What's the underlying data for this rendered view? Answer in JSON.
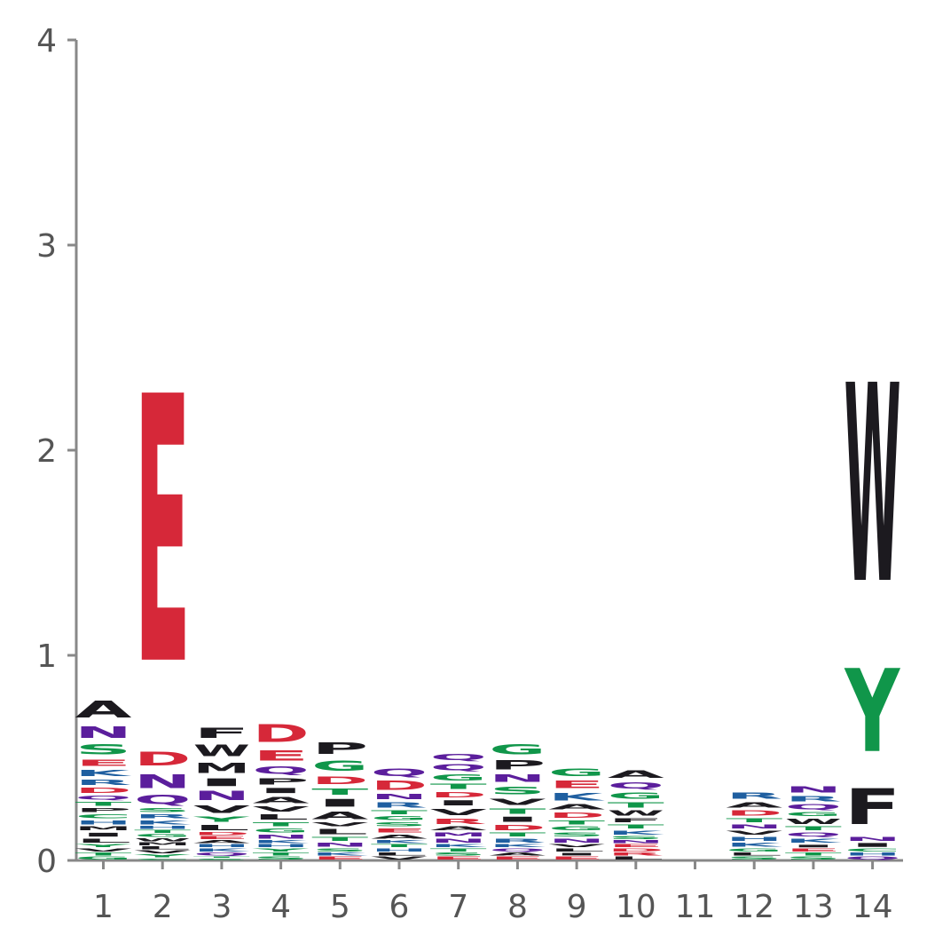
{
  "chart_data": {
    "type": "sequence-logo",
    "ylim": [
      0,
      4
    ],
    "yticks": [
      0,
      1,
      2,
      3,
      4
    ],
    "positions": [
      "1",
      "2",
      "3",
      "4",
      "5",
      "6",
      "7",
      "8",
      "9",
      "10",
      "11",
      "12",
      "13",
      "14"
    ],
    "colors": {
      "red": "#d62839",
      "purple": "#5b1e9c",
      "green": "#10964a",
      "blue": "#1f5fa0",
      "black": "#1c1a1f"
    },
    "columns": [
      {
        "position": "1",
        "letters": [
          {
            "l": "G",
            "h": 0.02,
            "c": "green"
          },
          {
            "l": "T",
            "h": 0.02,
            "c": "green"
          },
          {
            "l": "V",
            "h": 0.02,
            "c": "black"
          },
          {
            "l": "Y",
            "h": 0.02,
            "c": "green"
          },
          {
            "l": "L",
            "h": 0.03,
            "c": "black"
          },
          {
            "l": "I",
            "h": 0.03,
            "c": "black"
          },
          {
            "l": "M",
            "h": 0.03,
            "c": "black"
          },
          {
            "l": "H",
            "h": 0.03,
            "c": "blue"
          },
          {
            "l": "C",
            "h": 0.03,
            "c": "green"
          },
          {
            "l": "P",
            "h": 0.03,
            "c": "black"
          },
          {
            "l": "T",
            "h": 0.03,
            "c": "green"
          },
          {
            "l": "Q",
            "h": 0.03,
            "c": "purple"
          },
          {
            "l": "D",
            "h": 0.04,
            "c": "red"
          },
          {
            "l": "R",
            "h": 0.04,
            "c": "blue"
          },
          {
            "l": "K",
            "h": 0.05,
            "c": "blue"
          },
          {
            "l": "E",
            "h": 0.05,
            "c": "red"
          },
          {
            "l": "S",
            "h": 0.08,
            "c": "green"
          },
          {
            "l": "N",
            "h": 0.09,
            "c": "purple"
          },
          {
            "l": "A",
            "h": 0.13,
            "c": "black"
          }
        ]
      },
      {
        "position": "2",
        "letters": [
          {
            "l": "C",
            "h": 0.01,
            "c": "green"
          },
          {
            "l": "Y",
            "h": 0.02,
            "c": "green"
          },
          {
            "l": "V",
            "h": 0.02,
            "c": "black"
          },
          {
            "l": "L",
            "h": 0.02,
            "c": "black"
          },
          {
            "l": "M",
            "h": 0.02,
            "c": "black"
          },
          {
            "l": "W",
            "h": 0.02,
            "c": "black"
          },
          {
            "l": "G",
            "h": 0.02,
            "c": "green"
          },
          {
            "l": "T",
            "h": 0.02,
            "c": "green"
          },
          {
            "l": "H",
            "h": 0.02,
            "c": "blue"
          },
          {
            "l": "K",
            "h": 0.03,
            "c": "blue"
          },
          {
            "l": "R",
            "h": 0.03,
            "c": "blue"
          },
          {
            "l": "S",
            "h": 0.03,
            "c": "green"
          },
          {
            "l": "Q",
            "h": 0.07,
            "c": "purple"
          },
          {
            "l": "N",
            "h": 0.11,
            "c": "purple"
          },
          {
            "l": "D",
            "h": 0.11,
            "c": "red"
          },
          {
            "l": "E",
            "h": 2.09,
            "c": "red"
          }
        ]
      },
      {
        "position": "3",
        "letters": [
          {
            "l": "S",
            "h": 0.01,
            "c": "green"
          },
          {
            "l": "T",
            "h": 0.01,
            "c": "green"
          },
          {
            "l": "Q",
            "h": 0.02,
            "c": "purple"
          },
          {
            "l": "K",
            "h": 0.02,
            "c": "blue"
          },
          {
            "l": "H",
            "h": 0.02,
            "c": "blue"
          },
          {
            "l": "A",
            "h": 0.02,
            "c": "black"
          },
          {
            "l": "E",
            "h": 0.02,
            "c": "red"
          },
          {
            "l": "D",
            "h": 0.02,
            "c": "red"
          },
          {
            "l": "L",
            "h": 0.04,
            "c": "black"
          },
          {
            "l": "Y",
            "h": 0.04,
            "c": "green"
          },
          {
            "l": "V",
            "h": 0.06,
            "c": "black"
          },
          {
            "l": "N",
            "h": 0.07,
            "c": "purple"
          },
          {
            "l": "I",
            "h": 0.06,
            "c": "black"
          },
          {
            "l": "M",
            "h": 0.08,
            "c": "black"
          },
          {
            "l": "W",
            "h": 0.09,
            "c": "black"
          },
          {
            "l": "F",
            "h": 0.08,
            "c": "black"
          }
        ]
      },
      {
        "position": "4",
        "letters": [
          {
            "l": "S",
            "h": 0.02,
            "c": "green"
          },
          {
            "l": "T",
            "h": 0.02,
            "c": "green"
          },
          {
            "l": "Y",
            "h": 0.02,
            "c": "green"
          },
          {
            "l": "H",
            "h": 0.02,
            "c": "blue"
          },
          {
            "l": "K",
            "h": 0.02,
            "c": "blue"
          },
          {
            "l": "N",
            "h": 0.03,
            "c": "purple"
          },
          {
            "l": "G",
            "h": 0.03,
            "c": "green"
          },
          {
            "l": "T",
            "h": 0.03,
            "c": "green"
          },
          {
            "l": "L",
            "h": 0.04,
            "c": "black"
          },
          {
            "l": "V",
            "h": 0.04,
            "c": "black"
          },
          {
            "l": "A",
            "h": 0.05,
            "c": "black"
          },
          {
            "l": "I",
            "h": 0.04,
            "c": "black"
          },
          {
            "l": "P",
            "h": 0.05,
            "c": "black"
          },
          {
            "l": "Q",
            "h": 0.06,
            "c": "purple"
          },
          {
            "l": "E",
            "h": 0.08,
            "c": "red"
          },
          {
            "l": "D",
            "h": 0.14,
            "c": "red"
          }
        ]
      },
      {
        "position": "5",
        "letters": [
          {
            "l": "E",
            "h": 0.02,
            "c": "red"
          },
          {
            "l": "K",
            "h": 0.02,
            "c": "blue"
          },
          {
            "l": "S",
            "h": 0.02,
            "c": "green"
          },
          {
            "l": "N",
            "h": 0.03,
            "c": "purple"
          },
          {
            "l": "T",
            "h": 0.03,
            "c": "green"
          },
          {
            "l": "L",
            "h": 0.04,
            "c": "black"
          },
          {
            "l": "V",
            "h": 0.03,
            "c": "black"
          },
          {
            "l": "A",
            "h": 0.06,
            "c": "black"
          },
          {
            "l": "I",
            "h": 0.06,
            "c": "black"
          },
          {
            "l": "T",
            "h": 0.05,
            "c": "green"
          },
          {
            "l": "D",
            "h": 0.06,
            "c": "red"
          },
          {
            "l": "G",
            "h": 0.08,
            "c": "green"
          },
          {
            "l": "P",
            "h": 0.09,
            "c": "black"
          }
        ]
      },
      {
        "position": "6",
        "letters": [
          {
            "l": "V",
            "h": 0.02,
            "c": "black"
          },
          {
            "l": "L",
            "h": 0.02,
            "c": "black"
          },
          {
            "l": "H",
            "h": 0.02,
            "c": "blue"
          },
          {
            "l": "T",
            "h": 0.02,
            "c": "green"
          },
          {
            "l": "K",
            "h": 0.02,
            "c": "blue"
          },
          {
            "l": "A",
            "h": 0.03,
            "c": "black"
          },
          {
            "l": "E",
            "h": 0.03,
            "c": "red"
          },
          {
            "l": "S",
            "h": 0.03,
            "c": "green"
          },
          {
            "l": "G",
            "h": 0.03,
            "c": "green"
          },
          {
            "l": "T",
            "h": 0.03,
            "c": "green"
          },
          {
            "l": "R",
            "h": 0.04,
            "c": "blue"
          },
          {
            "l": "N",
            "h": 0.04,
            "c": "purple"
          },
          {
            "l": "D",
            "h": 0.07,
            "c": "red"
          },
          {
            "l": "Q",
            "h": 0.06,
            "c": "purple"
          }
        ]
      },
      {
        "position": "7",
        "letters": [
          {
            "l": "E",
            "h": 0.02,
            "c": "red"
          },
          {
            "l": "S",
            "h": 0.02,
            "c": "green"
          },
          {
            "l": "T",
            "h": 0.02,
            "c": "green"
          },
          {
            "l": "K",
            "h": 0.02,
            "c": "blue"
          },
          {
            "l": "N",
            "h": 0.03,
            "c": "purple"
          },
          {
            "l": "M",
            "h": 0.03,
            "c": "purple"
          },
          {
            "l": "A",
            "h": 0.03,
            "c": "black"
          },
          {
            "l": "R",
            "h": 0.04,
            "c": "red"
          },
          {
            "l": "V",
            "h": 0.05,
            "c": "black"
          },
          {
            "l": "I",
            "h": 0.04,
            "c": "black"
          },
          {
            "l": "D",
            "h": 0.04,
            "c": "red"
          },
          {
            "l": "T",
            "h": 0.04,
            "c": "green"
          },
          {
            "l": "G",
            "h": 0.05,
            "c": "green"
          },
          {
            "l": "Q",
            "h": 0.05,
            "c": "purple"
          },
          {
            "l": "Q",
            "h": 0.05,
            "c": "purple"
          }
        ]
      },
      {
        "position": "8",
        "letters": [
          {
            "l": "E",
            "h": 0.02,
            "c": "red"
          },
          {
            "l": "A",
            "h": 0.02,
            "c": "black"
          },
          {
            "l": "Q",
            "h": 0.02,
            "c": "purple"
          },
          {
            "l": "K",
            "h": 0.02,
            "c": "blue"
          },
          {
            "l": "R",
            "h": 0.03,
            "c": "blue"
          },
          {
            "l": "T",
            "h": 0.03,
            "c": "green"
          },
          {
            "l": "D",
            "h": 0.04,
            "c": "red"
          },
          {
            "l": "I",
            "h": 0.04,
            "c": "black"
          },
          {
            "l": "T",
            "h": 0.04,
            "c": "green"
          },
          {
            "l": "V",
            "h": 0.05,
            "c": "black"
          },
          {
            "l": "S",
            "h": 0.06,
            "c": "green"
          },
          {
            "l": "N",
            "h": 0.06,
            "c": "purple"
          },
          {
            "l": "P",
            "h": 0.07,
            "c": "black"
          },
          {
            "l": "G",
            "h": 0.08,
            "c": "green"
          }
        ]
      },
      {
        "position": "9",
        "letters": [
          {
            "l": "E",
            "h": 0.02,
            "c": "red"
          },
          {
            "l": "I",
            "h": 0.02,
            "c": "black"
          },
          {
            "l": "L",
            "h": 0.02,
            "c": "black"
          },
          {
            "l": "V",
            "h": 0.02,
            "c": "black"
          },
          {
            "l": "N",
            "h": 0.03,
            "c": "purple"
          },
          {
            "l": "S",
            "h": 0.03,
            "c": "green"
          },
          {
            "l": "G",
            "h": 0.03,
            "c": "green"
          },
          {
            "l": "T",
            "h": 0.03,
            "c": "green"
          },
          {
            "l": "D",
            "h": 0.04,
            "c": "red"
          },
          {
            "l": "A",
            "h": 0.04,
            "c": "black"
          },
          {
            "l": "K",
            "h": 0.06,
            "c": "blue"
          },
          {
            "l": "E",
            "h": 0.06,
            "c": "red"
          },
          {
            "l": "G",
            "h": 0.06,
            "c": "green"
          }
        ]
      },
      {
        "position": "10",
        "letters": [
          {
            "l": "L",
            "h": 0.02,
            "c": "black"
          },
          {
            "l": "R",
            "h": 0.02,
            "c": "red"
          },
          {
            "l": "D",
            "h": 0.02,
            "c": "red"
          },
          {
            "l": "E",
            "h": 0.02,
            "c": "red"
          },
          {
            "l": "N",
            "h": 0.02,
            "c": "purple"
          },
          {
            "l": "S",
            "h": 0.02,
            "c": "green"
          },
          {
            "l": "K",
            "h": 0.03,
            "c": "blue"
          },
          {
            "l": "T",
            "h": 0.03,
            "c": "green"
          },
          {
            "l": "F",
            "h": 0.03,
            "c": "black"
          },
          {
            "l": "W",
            "h": 0.04,
            "c": "black"
          },
          {
            "l": "T",
            "h": 0.04,
            "c": "green"
          },
          {
            "l": "G",
            "h": 0.05,
            "c": "green"
          },
          {
            "l": "Q",
            "h": 0.05,
            "c": "purple"
          },
          {
            "l": "A",
            "h": 0.06,
            "c": "black"
          }
        ]
      },
      {
        "position": "11",
        "letters": []
      },
      {
        "position": "12",
        "letters": [
          {
            "l": "S",
            "h": 0.02,
            "c": "green"
          },
          {
            "l": "L",
            "h": 0.02,
            "c": "black"
          },
          {
            "l": "G",
            "h": 0.02,
            "c": "green"
          },
          {
            "l": "K",
            "h": 0.03,
            "c": "blue"
          },
          {
            "l": "H",
            "h": 0.03,
            "c": "blue"
          },
          {
            "l": "V",
            "h": 0.03,
            "c": "black"
          },
          {
            "l": "N",
            "h": 0.03,
            "c": "purple"
          },
          {
            "l": "T",
            "h": 0.03,
            "c": "green"
          },
          {
            "l": "D",
            "h": 0.04,
            "c": "red"
          },
          {
            "l": "A",
            "h": 0.04,
            "c": "black"
          },
          {
            "l": "R",
            "h": 0.05,
            "c": "blue"
          }
        ]
      },
      {
        "position": "13",
        "letters": [
          {
            "l": "S",
            "h": 0.02,
            "c": "green"
          },
          {
            "l": "T",
            "h": 0.02,
            "c": "green"
          },
          {
            "l": "E",
            "h": 0.02,
            "c": "red"
          },
          {
            "l": "I",
            "h": 0.02,
            "c": "black"
          },
          {
            "l": "K",
            "h": 0.03,
            "c": "blue"
          },
          {
            "l": "Q",
            "h": 0.03,
            "c": "purple"
          },
          {
            "l": "T",
            "h": 0.03,
            "c": "green"
          },
          {
            "l": "W",
            "h": 0.04,
            "c": "black"
          },
          {
            "l": "G",
            "h": 0.03,
            "c": "green"
          },
          {
            "l": "Q",
            "h": 0.04,
            "c": "purple"
          },
          {
            "l": "R",
            "h": 0.04,
            "c": "blue"
          },
          {
            "l": "N",
            "h": 0.05,
            "c": "purple"
          }
        ]
      },
      {
        "position": "14",
        "letters": [
          {
            "l": "Q",
            "h": 0.02,
            "c": "purple"
          },
          {
            "l": "H",
            "h": 0.02,
            "c": "blue"
          },
          {
            "l": "C",
            "h": 0.02,
            "c": "green"
          },
          {
            "l": "I",
            "h": 0.03,
            "c": "black"
          },
          {
            "l": "N",
            "h": 0.03,
            "c": "purple"
          },
          {
            "l": "F",
            "h": 0.28,
            "c": "black"
          },
          {
            "l": "Y",
            "h": 0.65,
            "c": "green"
          },
          {
            "l": "W",
            "h": 1.55,
            "c": "black"
          }
        ]
      }
    ]
  }
}
